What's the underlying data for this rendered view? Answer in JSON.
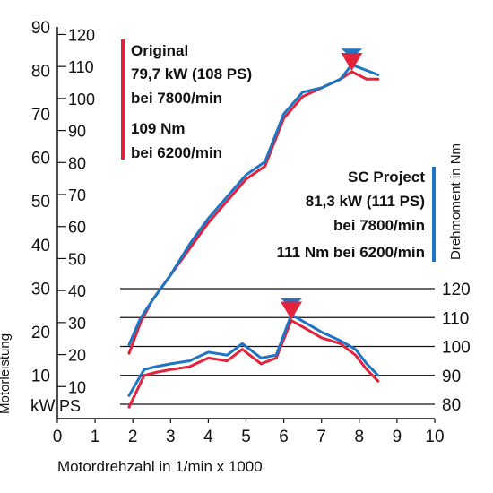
{
  "chart_data": {
    "type": "line",
    "xlabel": "Motordrehzahl in 1/min x 1000",
    "ylabel_left": "Motorleistung",
    "ylabel_right": "Drehmoment in Nm",
    "x_ticks": [
      "0",
      "1",
      "2",
      "3",
      "4",
      "5",
      "6",
      "7",
      "8",
      "9",
      "10"
    ],
    "xlim": [
      0,
      10
    ],
    "y_kw_ticks": [
      "10",
      "20",
      "30",
      "40",
      "50",
      "60",
      "70",
      "80",
      "90"
    ],
    "y_ps_ticks": [
      "10",
      "20",
      "30",
      "40",
      "50",
      "60",
      "70",
      "80",
      "90",
      "100",
      "110",
      "120"
    ],
    "y_nm_ticks": [
      "80",
      "90",
      "100",
      "110",
      "120"
    ],
    "unit_kw": "kW",
    "unit_ps": "PS",
    "ylim_kw": [
      0,
      90
    ],
    "ylim_nm": [
      80,
      120
    ],
    "grid": "horizontal lines at torque ticks",
    "legend_original": {
      "name": "Original",
      "line1": "79,7 kW (108 PS)",
      "line2": "bei 7800/min",
      "line3": "109 Nm",
      "line4": "bei 6200/min"
    },
    "legend_sc": {
      "name": "SC Project",
      "line1": "81,3 kW (111 PS)",
      "line2": "bei 7800/min",
      "line3": "111 Nm bei 6200/min"
    },
    "series": [
      {
        "name": "Original",
        "kind": "power",
        "color": "#e2233b",
        "x": [
          1.9,
          2.2,
          2.5,
          3.0,
          3.5,
          4.0,
          4.5,
          5.0,
          5.5,
          6.0,
          6.5,
          7.0,
          7.5,
          7.8,
          8.2,
          8.5
        ],
        "y": [
          15,
          22,
          27,
          33,
          39,
          45,
          50,
          55,
          58,
          69,
          74,
          76,
          78,
          79.7,
          78,
          78
        ]
      },
      {
        "name": "SC Project",
        "kind": "power",
        "color": "#1f74c4",
        "x": [
          1.9,
          2.2,
          2.5,
          3.0,
          3.5,
          4.0,
          4.5,
          5.0,
          5.5,
          6.0,
          6.5,
          7.0,
          7.5,
          7.8,
          8.2,
          8.5
        ],
        "y": [
          17,
          23,
          27,
          33,
          40,
          46,
          51,
          56,
          59,
          70,
          75,
          76,
          78,
          81.3,
          80,
          79
        ]
      },
      {
        "name": "Original",
        "kind": "torque",
        "color": "#e2233b",
        "x": [
          1.9,
          2.3,
          2.6,
          3.0,
          3.5,
          4.0,
          4.5,
          4.9,
          5.4,
          5.8,
          6.2,
          6.6,
          7.0,
          7.5,
          7.9,
          8.2,
          8.5
        ],
        "y": [
          79,
          90,
          91,
          92,
          93,
          96,
          95,
          99,
          94,
          96,
          109,
          106,
          103,
          101,
          97,
          92,
          88
        ]
      },
      {
        "name": "SC Project",
        "kind": "torque",
        "color": "#1f74c4",
        "x": [
          1.9,
          2.3,
          2.6,
          3.0,
          3.5,
          4.0,
          4.5,
          4.9,
          5.4,
          5.8,
          6.2,
          6.6,
          7.0,
          7.5,
          7.9,
          8.2,
          8.5
        ],
        "y": [
          83,
          92,
          93,
          94,
          95,
          98,
          97,
          101,
          96,
          97,
          111,
          108,
          105,
          102,
          99,
          94,
          90
        ]
      }
    ],
    "peak_markers": [
      {
        "name": "SC Project power peak",
        "x": 7.8,
        "y": 81.3,
        "color": "#1f74c4"
      },
      {
        "name": "Original power peak",
        "x": 7.8,
        "y": 79.7,
        "color": "#e2233b"
      },
      {
        "name": "SC Project torque peak",
        "x": 6.2,
        "y": 111,
        "color": "#1f74c4"
      },
      {
        "name": "Original torque peak",
        "x": 6.2,
        "y": 109,
        "color": "#e2233b"
      }
    ]
  }
}
